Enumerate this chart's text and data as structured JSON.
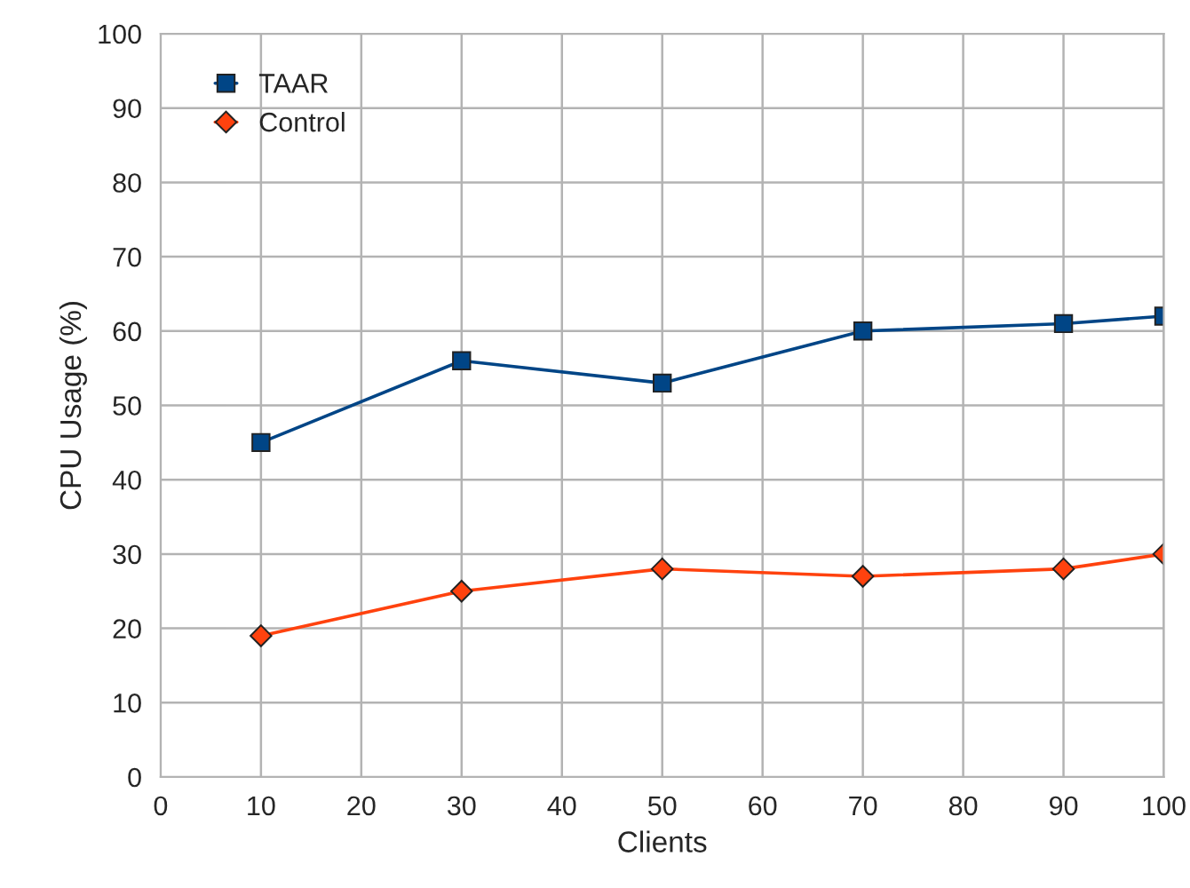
{
  "chart_data": {
    "type": "line",
    "xlabel": "Clients",
    "ylabel": "CPU Usage (%)",
    "x": [
      10,
      30,
      50,
      70,
      90,
      100
    ],
    "series": [
      {
        "name": "TAAR",
        "color": "#004586",
        "marker": "square",
        "values": [
          45,
          56,
          53,
          60,
          61,
          62
        ]
      },
      {
        "name": "Control",
        "color": "#ff420e",
        "marker": "diamond",
        "values": [
          19,
          25,
          28,
          27,
          28,
          30
        ]
      }
    ],
    "xlim": [
      0,
      100
    ],
    "xticks": [
      0,
      10,
      20,
      30,
      40,
      50,
      60,
      70,
      80,
      90,
      100
    ],
    "ylim": [
      0,
      100
    ],
    "yticks": [
      0,
      10,
      20,
      30,
      40,
      50,
      60,
      70,
      80,
      90,
      100
    ],
    "grid": true,
    "legend": "top left",
    "line_style": "solid"
  }
}
